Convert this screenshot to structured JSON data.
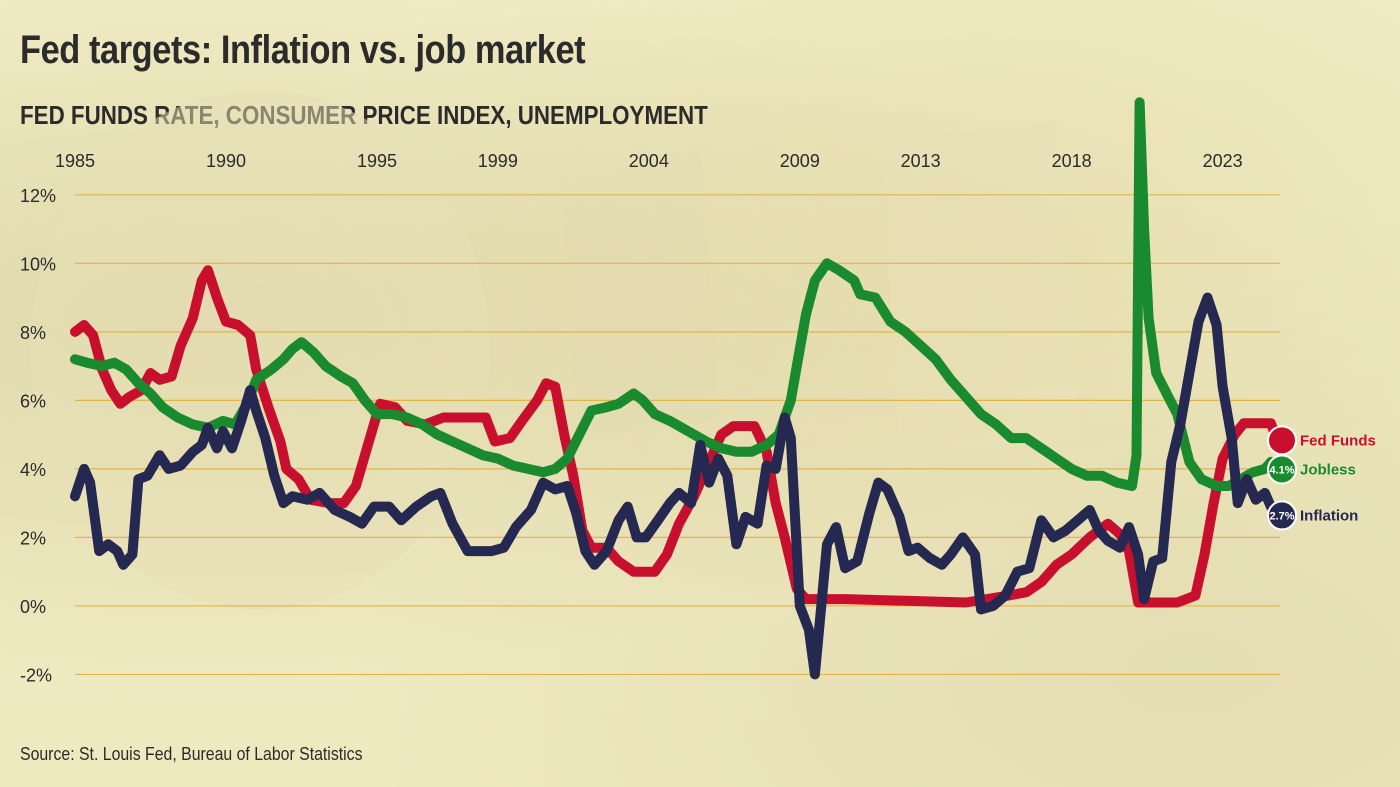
{
  "header": {
    "title": "Fed targets: Inflation vs. job market",
    "subtitle": "FED FUNDS RATE, CONSUMER PRICE INDEX, UNEMPLOYMENT"
  },
  "footer": {
    "source": "Source: St. Louis Fed, Bureau of Labor Statistics"
  },
  "chart_data": {
    "type": "line",
    "title": "Fed targets: Inflation vs. job market",
    "subtitle": "FED FUNDS RATE, CONSUMER PRICE INDEX, UNEMPLOYMENT",
    "x_tick_labels": [
      "1985",
      "1990",
      "1995",
      "1999",
      "2004",
      "2009",
      "2013",
      "2018",
      "2023"
    ],
    "x_tick_years": [
      1985,
      1990,
      1995,
      1999,
      2004,
      2009,
      2013,
      2018,
      2023
    ],
    "y_tick_labels": [
      "-2%",
      "0%",
      "2%",
      "4%",
      "6%",
      "8%",
      "10%",
      "12%"
    ],
    "y_tick_values": [
      -2,
      0,
      2,
      4,
      6,
      8,
      10,
      12
    ],
    "xlim": [
      1985,
      2024.9
    ],
    "ylim": [
      -2.6,
      13.6
    ],
    "grid": true,
    "legend": "end-of-line labels",
    "series": [
      {
        "name": "Fed Funds",
        "color": "#c8102e",
        "end_value_label": "",
        "points": [
          [
            1985.0,
            8.0
          ],
          [
            1985.3,
            8.2
          ],
          [
            1985.6,
            7.9
          ],
          [
            1985.9,
            6.9
          ],
          [
            1986.2,
            6.3
          ],
          [
            1986.5,
            5.9
          ],
          [
            1986.8,
            6.1
          ],
          [
            1987.2,
            6.3
          ],
          [
            1987.5,
            6.8
          ],
          [
            1987.8,
            6.6
          ],
          [
            1988.2,
            6.7
          ],
          [
            1988.5,
            7.6
          ],
          [
            1988.9,
            8.4
          ],
          [
            1989.2,
            9.5
          ],
          [
            1989.4,
            9.8
          ],
          [
            1989.7,
            9.0
          ],
          [
            1990.0,
            8.3
          ],
          [
            1990.4,
            8.2
          ],
          [
            1990.8,
            7.9
          ],
          [
            1991.0,
            6.9
          ],
          [
            1991.4,
            5.8
          ],
          [
            1991.8,
            4.8
          ],
          [
            1992.0,
            4.0
          ],
          [
            1992.4,
            3.7
          ],
          [
            1992.8,
            3.1
          ],
          [
            1993.4,
            3.0
          ],
          [
            1993.9,
            3.0
          ],
          [
            1994.3,
            3.5
          ],
          [
            1994.7,
            4.7
          ],
          [
            1995.1,
            5.9
          ],
          [
            1995.6,
            5.8
          ],
          [
            1996.0,
            5.4
          ],
          [
            1996.6,
            5.3
          ],
          [
            1997.2,
            5.5
          ],
          [
            1997.8,
            5.5
          ],
          [
            1998.6,
            5.5
          ],
          [
            1998.9,
            4.8
          ],
          [
            1999.4,
            4.9
          ],
          [
            1999.8,
            5.4
          ],
          [
            2000.3,
            6.0
          ],
          [
            2000.6,
            6.5
          ],
          [
            2000.9,
            6.4
          ],
          [
            2001.2,
            5.0
          ],
          [
            2001.5,
            3.8
          ],
          [
            2001.8,
            2.2
          ],
          [
            2002.1,
            1.7
          ],
          [
            2002.6,
            1.7
          ],
          [
            2003.0,
            1.3
          ],
          [
            2003.5,
            1.0
          ],
          [
            2004.2,
            1.0
          ],
          [
            2004.6,
            1.5
          ],
          [
            2005.0,
            2.4
          ],
          [
            2005.5,
            3.2
          ],
          [
            2005.9,
            4.0
          ],
          [
            2006.4,
            5.0
          ],
          [
            2006.8,
            5.25
          ],
          [
            2007.5,
            5.25
          ],
          [
            2007.9,
            4.5
          ],
          [
            2008.2,
            3.0
          ],
          [
            2008.5,
            2.0
          ],
          [
            2008.9,
            0.5
          ],
          [
            2009.2,
            0.2
          ],
          [
            2010.5,
            0.2
          ],
          [
            2012.5,
            0.15
          ],
          [
            2014.5,
            0.1
          ],
          [
            2015.9,
            0.3
          ],
          [
            2016.5,
            0.4
          ],
          [
            2017.0,
            0.7
          ],
          [
            2017.5,
            1.2
          ],
          [
            2018.0,
            1.5
          ],
          [
            2018.6,
            2.0
          ],
          [
            2019.2,
            2.4
          ],
          [
            2019.6,
            2.1
          ],
          [
            2019.9,
            1.6
          ],
          [
            2020.2,
            0.1
          ],
          [
            2021.5,
            0.1
          ],
          [
            2022.1,
            0.3
          ],
          [
            2022.4,
            1.5
          ],
          [
            2022.7,
            3.0
          ],
          [
            2023.0,
            4.3
          ],
          [
            2023.4,
            5.0
          ],
          [
            2023.7,
            5.33
          ],
          [
            2024.6,
            5.33
          ],
          [
            2024.9,
            4.6
          ]
        ]
      },
      {
        "name": "Jobless",
        "color": "#1a8a2e",
        "end_value_label": "4.1%",
        "points": [
          [
            1985.0,
            7.2
          ],
          [
            1985.4,
            7.1
          ],
          [
            1985.9,
            7.0
          ],
          [
            1986.3,
            7.1
          ],
          [
            1986.7,
            6.9
          ],
          [
            1987.1,
            6.5
          ],
          [
            1987.5,
            6.2
          ],
          [
            1987.9,
            5.8
          ],
          [
            1988.4,
            5.5
          ],
          [
            1988.9,
            5.3
          ],
          [
            1989.4,
            5.2
          ],
          [
            1989.9,
            5.4
          ],
          [
            1990.3,
            5.3
          ],
          [
            1990.7,
            5.9
          ],
          [
            1991.0,
            6.6
          ],
          [
            1991.5,
            6.9
          ],
          [
            1991.9,
            7.2
          ],
          [
            1992.2,
            7.5
          ],
          [
            1992.5,
            7.7
          ],
          [
            1992.9,
            7.4
          ],
          [
            1993.3,
            7.0
          ],
          [
            1993.8,
            6.7
          ],
          [
            1994.2,
            6.5
          ],
          [
            1994.6,
            6.0
          ],
          [
            1995.0,
            5.6
          ],
          [
            1995.5,
            5.6
          ],
          [
            1996.0,
            5.5
          ],
          [
            1996.5,
            5.3
          ],
          [
            1997.0,
            5.0
          ],
          [
            1997.5,
            4.8
          ],
          [
            1998.0,
            4.6
          ],
          [
            1998.5,
            4.4
          ],
          [
            1999.0,
            4.3
          ],
          [
            1999.5,
            4.1
          ],
          [
            2000.0,
            4.0
          ],
          [
            2000.5,
            3.9
          ],
          [
            2000.9,
            4.0
          ],
          [
            2001.3,
            4.3
          ],
          [
            2001.7,
            5.0
          ],
          [
            2002.1,
            5.7
          ],
          [
            2002.6,
            5.8
          ],
          [
            2003.0,
            5.9
          ],
          [
            2003.5,
            6.2
          ],
          [
            2003.8,
            6.0
          ],
          [
            2004.2,
            5.6
          ],
          [
            2004.7,
            5.4
          ],
          [
            2005.3,
            5.1
          ],
          [
            2005.9,
            4.8
          ],
          [
            2006.4,
            4.6
          ],
          [
            2006.9,
            4.5
          ],
          [
            2007.4,
            4.5
          ],
          [
            2007.9,
            4.7
          ],
          [
            2008.3,
            5.0
          ],
          [
            2008.7,
            6.0
          ],
          [
            2008.9,
            7.0
          ],
          [
            2009.2,
            8.5
          ],
          [
            2009.5,
            9.5
          ],
          [
            2009.9,
            10.0
          ],
          [
            2010.3,
            9.8
          ],
          [
            2010.8,
            9.5
          ],
          [
            2011.0,
            9.1
          ],
          [
            2011.5,
            9.0
          ],
          [
            2012.0,
            8.3
          ],
          [
            2012.5,
            8.0
          ],
          [
            2013.0,
            7.6
          ],
          [
            2013.5,
            7.2
          ],
          [
            2014.0,
            6.6
          ],
          [
            2014.5,
            6.1
          ],
          [
            2015.0,
            5.6
          ],
          [
            2015.5,
            5.3
          ],
          [
            2016.0,
            4.9
          ],
          [
            2016.5,
            4.9
          ],
          [
            2017.0,
            4.6
          ],
          [
            2017.5,
            4.3
          ],
          [
            2018.0,
            4.0
          ],
          [
            2018.5,
            3.8
          ],
          [
            2019.0,
            3.8
          ],
          [
            2019.5,
            3.6
          ],
          [
            2020.0,
            3.5
          ],
          [
            2020.15,
            4.4
          ],
          [
            2020.25,
            14.7
          ],
          [
            2020.4,
            11.0
          ],
          [
            2020.55,
            8.4
          ],
          [
            2020.8,
            6.8
          ],
          [
            2021.2,
            6.1
          ],
          [
            2021.5,
            5.6
          ],
          [
            2021.9,
            4.2
          ],
          [
            2022.3,
            3.7
          ],
          [
            2022.8,
            3.5
          ],
          [
            2023.2,
            3.5
          ],
          [
            2023.6,
            3.7
          ],
          [
            2024.0,
            3.9
          ],
          [
            2024.4,
            4.0
          ],
          [
            2024.6,
            4.2
          ],
          [
            2024.9,
            4.1
          ]
        ]
      },
      {
        "name": "Inflation",
        "color": "#252850",
        "end_value_label": "2.7%",
        "points": [
          [
            1985.0,
            3.2
          ],
          [
            1985.3,
            4.0
          ],
          [
            1985.5,
            3.6
          ],
          [
            1985.8,
            1.6
          ],
          [
            1986.1,
            1.8
          ],
          [
            1986.4,
            1.6
          ],
          [
            1986.6,
            1.2
          ],
          [
            1986.9,
            1.5
          ],
          [
            1987.1,
            3.7
          ],
          [
            1987.4,
            3.8
          ],
          [
            1987.8,
            4.4
          ],
          [
            1988.1,
            4.0
          ],
          [
            1988.5,
            4.1
          ],
          [
            1988.9,
            4.5
          ],
          [
            1989.2,
            4.7
          ],
          [
            1989.4,
            5.2
          ],
          [
            1989.7,
            4.6
          ],
          [
            1989.9,
            5.1
          ],
          [
            1990.2,
            4.6
          ],
          [
            1990.5,
            5.4
          ],
          [
            1990.8,
            6.3
          ],
          [
            1991.0,
            5.7
          ],
          [
            1991.3,
            4.9
          ],
          [
            1991.6,
            3.8
          ],
          [
            1991.9,
            3.0
          ],
          [
            1992.2,
            3.2
          ],
          [
            1992.7,
            3.1
          ],
          [
            1993.1,
            3.3
          ],
          [
            1993.6,
            2.8
          ],
          [
            1994.1,
            2.6
          ],
          [
            1994.5,
            2.4
          ],
          [
            1994.9,
            2.9
          ],
          [
            1995.4,
            2.9
          ],
          [
            1995.8,
            2.5
          ],
          [
            1996.3,
            2.9
          ],
          [
            1996.8,
            3.2
          ],
          [
            1997.1,
            3.3
          ],
          [
            1997.5,
            2.4
          ],
          [
            1998.0,
            1.6
          ],
          [
            1998.4,
            1.6
          ],
          [
            1998.8,
            1.6
          ],
          [
            1999.2,
            1.7
          ],
          [
            1999.6,
            2.3
          ],
          [
            2000.1,
            2.8
          ],
          [
            2000.5,
            3.6
          ],
          [
            2000.9,
            3.4
          ],
          [
            2001.3,
            3.5
          ],
          [
            2001.6,
            2.7
          ],
          [
            2001.9,
            1.6
          ],
          [
            2002.2,
            1.2
          ],
          [
            2002.6,
            1.6
          ],
          [
            2003.0,
            2.5
          ],
          [
            2003.3,
            2.9
          ],
          [
            2003.6,
            2.0
          ],
          [
            2003.9,
            2.0
          ],
          [
            2004.3,
            2.5
          ],
          [
            2004.7,
            3.0
          ],
          [
            2005.0,
            3.3
          ],
          [
            2005.4,
            3.0
          ],
          [
            2005.7,
            4.7
          ],
          [
            2006.0,
            3.6
          ],
          [
            2006.3,
            4.3
          ],
          [
            2006.6,
            3.8
          ],
          [
            2006.9,
            1.8
          ],
          [
            2007.2,
            2.6
          ],
          [
            2007.6,
            2.4
          ],
          [
            2007.9,
            4.1
          ],
          [
            2008.2,
            4.0
          ],
          [
            2008.5,
            5.5
          ],
          [
            2008.7,
            4.9
          ],
          [
            2009.0,
            0.0
          ],
          [
            2009.3,
            -0.7
          ],
          [
            2009.5,
            -2.0
          ],
          [
            2009.9,
            1.8
          ],
          [
            2010.2,
            2.3
          ],
          [
            2010.5,
            1.1
          ],
          [
            2010.9,
            1.3
          ],
          [
            2011.3,
            2.7
          ],
          [
            2011.6,
            3.6
          ],
          [
            2011.9,
            3.4
          ],
          [
            2012.3,
            2.6
          ],
          [
            2012.6,
            1.6
          ],
          [
            2012.9,
            1.7
          ],
          [
            2013.3,
            1.4
          ],
          [
            2013.7,
            1.2
          ],
          [
            2014.0,
            1.5
          ],
          [
            2014.4,
            2.0
          ],
          [
            2014.8,
            1.5
          ],
          [
            2015.0,
            -0.1
          ],
          [
            2015.4,
            0.0
          ],
          [
            2015.8,
            0.3
          ],
          [
            2016.2,
            1.0
          ],
          [
            2016.6,
            1.1
          ],
          [
            2017.0,
            2.5
          ],
          [
            2017.4,
            2.0
          ],
          [
            2017.8,
            2.2
          ],
          [
            2018.2,
            2.5
          ],
          [
            2018.6,
            2.8
          ],
          [
            2018.9,
            2.2
          ],
          [
            2019.2,
            1.9
          ],
          [
            2019.6,
            1.7
          ],
          [
            2019.9,
            2.3
          ],
          [
            2020.2,
            1.5
          ],
          [
            2020.4,
            0.2
          ],
          [
            2020.7,
            1.3
          ],
          [
            2021.0,
            1.4
          ],
          [
            2021.3,
            4.2
          ],
          [
            2021.6,
            5.3
          ],
          [
            2021.9,
            6.8
          ],
          [
            2022.2,
            8.3
          ],
          [
            2022.5,
            9.0
          ],
          [
            2022.8,
            8.2
          ],
          [
            2023.0,
            6.4
          ],
          [
            2023.3,
            4.9
          ],
          [
            2023.5,
            3.0
          ],
          [
            2023.8,
            3.7
          ],
          [
            2024.1,
            3.1
          ],
          [
            2024.4,
            3.3
          ],
          [
            2024.6,
            2.9
          ],
          [
            2024.9,
            2.7
          ]
        ]
      }
    ]
  }
}
